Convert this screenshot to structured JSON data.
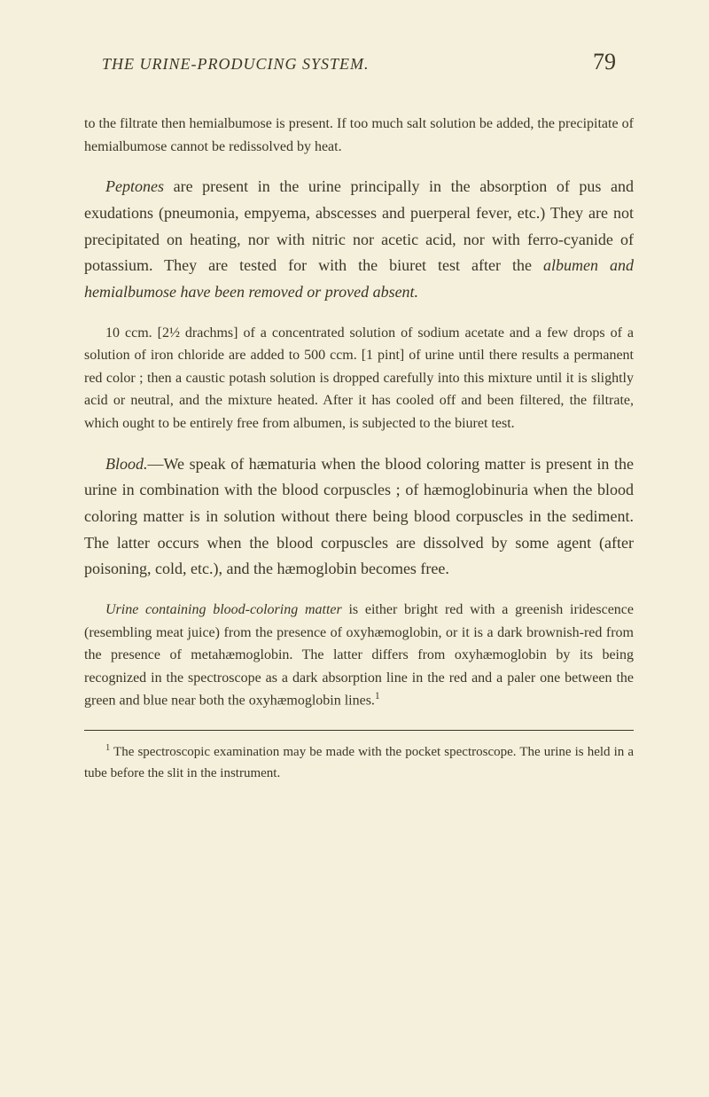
{
  "header": {
    "running_title": "THE URINE-PRODUCING SYSTEM.",
    "page_number": "79"
  },
  "paragraphs": {
    "p1_pre": "to the filtrate then hemialbumose is present. If too much salt solution be added, the precipitate of hemialbumose cannot be redissolved by heat.",
    "p2_italic1": "Peptones",
    "p2_text1": " are present in the urine principally in the absorption of pus and exudations (pneumonia, empyema, abscesses and puerperal fever, etc.) They are not precipitated on heating, nor with nitric nor acetic acid, nor with ferro-cyanide of potassium. They are tested for with the biuret test after the ",
    "p2_italic2": "albumen and hemialbumose have been removed or proved absent.",
    "p3": "10 ccm. [2½ drachms] of a concentrated solution of sodium acetate and a few drops of a solution of iron chloride are added to 500 ccm. [1 pint] of urine until there results a permanent red color ; then a caustic potash solution is dropped carefully into this mixture until it is slightly acid or neutral, and the mixture heated. After it has cooled off and been filtered, the filtrate, which ought to be entirely free from albumen, is subjected to the biuret test.",
    "p4_italic1": "Blood.",
    "p4_text1": "—We speak of hæmaturia when the blood coloring matter is present in the urine in combination with the blood corpuscles ; of hæmoglobinuria when the blood coloring matter is in solution without there being blood corpuscles in the sediment. The latter occurs when the blood corpuscles are dissolved by some agent (after poisoning, cold, etc.), and the hæmoglobin becomes free.",
    "p5_italic1": "Urine containing blood-coloring matter",
    "p5_text1": " is either bright red with a greenish iridescence (resembling meat juice) from the presence of oxyhæmoglobin, or it is a dark brownish-red from the presence of metahæmoglobin. The latter differs from oxyhæmoglobin by its being recognized in the spectroscope as a dark absorption line in the red and a paler one between the green and blue near both the oxyhæmoglobin lines.",
    "p5_sup": "1"
  },
  "footnote": {
    "sup": "1",
    "text": " The spectroscopic examination may be made with the pocket spectroscope. The urine is held in a tube before the slit in the instrument."
  }
}
